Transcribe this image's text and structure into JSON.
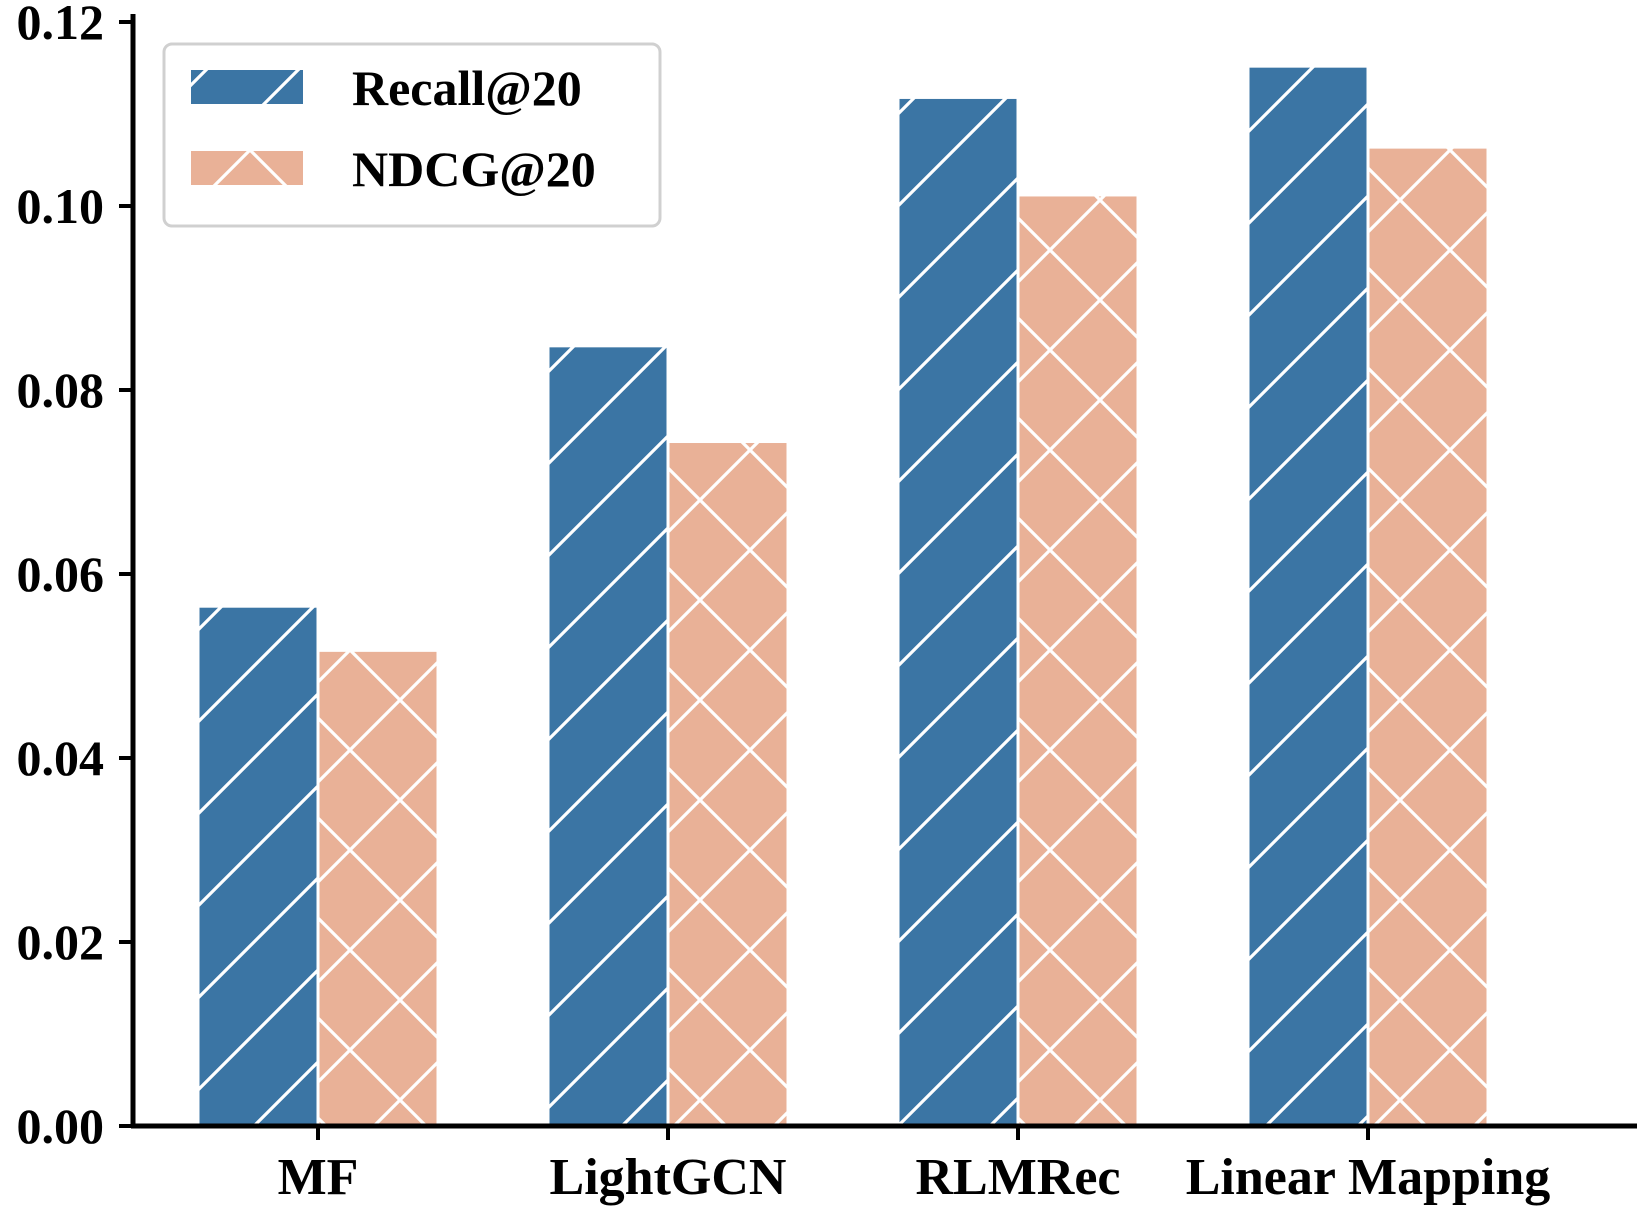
{
  "chart_data": {
    "type": "bar",
    "title": "",
    "xlabel": "",
    "ylabel": "",
    "categories": [
      "MF",
      "LightGCN",
      "RLMRec",
      "Linear Mapping"
    ],
    "series": [
      {
        "name": "Recall@20",
        "values": [
          0.0565,
          0.0848,
          0.1118,
          0.1152
        ],
        "color": "#3b75a4",
        "hatch": "diagonal"
      },
      {
        "name": "NDCG@20",
        "values": [
          0.0517,
          0.0744,
          0.1012,
          0.1064
        ],
        "color": "#e9b197",
        "hatch": "cross"
      }
    ],
    "ylim": [
      0,
      0.12
    ],
    "yticks": [
      "0.00",
      "0.02",
      "0.04",
      "0.06",
      "0.08",
      "0.10",
      "0.12"
    ],
    "grid": false,
    "legend_position": "top-left"
  }
}
